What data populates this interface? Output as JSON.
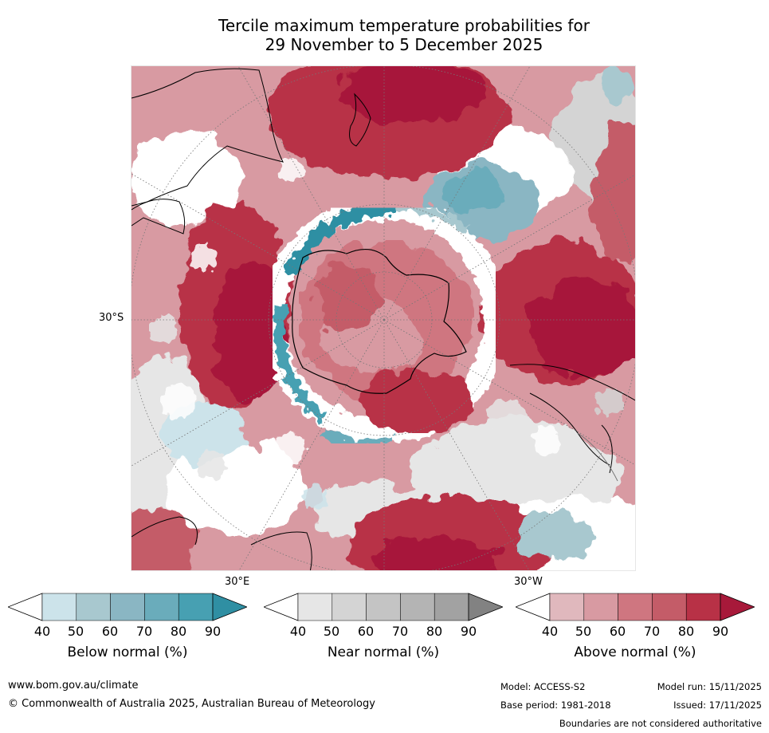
{
  "title": {
    "line1": "Tercile maximum temperature probabilities for",
    "line2": "29 November to 5 December 2025"
  },
  "map": {
    "projection": "polar-stereographic-south",
    "labels": {
      "lat_30s": "30°S",
      "lon_30e": "30°E",
      "lon_30w": "30°W"
    }
  },
  "legend": {
    "ticks": [
      "40",
      "50",
      "60",
      "70",
      "80",
      "90"
    ],
    "below": {
      "title": "Below normal (%)",
      "colors": [
        "#ffffff",
        "#cce3ea",
        "#a8c8cf",
        "#8ab6c3",
        "#6aacbb",
        "#47a0b2",
        "#2f8fa3"
      ]
    },
    "near": {
      "title": "Near normal (%)",
      "colors": [
        "#ffffff",
        "#e6e6e6",
        "#d4d4d4",
        "#c4c4c4",
        "#b4b4b4",
        "#a2a2a2",
        "#828282"
      ]
    },
    "above": {
      "title": "Above normal (%)",
      "colors": [
        "#ffffff",
        "#e0b8bd",
        "#d89aa2",
        "#cf7680",
        "#c45c68",
        "#b83146",
        "#a7193a"
      ]
    }
  },
  "footer": {
    "website": "www.bom.gov.au/climate",
    "copyright": "© Commonwealth of Australia 2025, Australian Bureau of Meteorology",
    "model": "Model: ACCESS-S2",
    "model_run": "Model run: 15/11/2025",
    "base_period": "Base period: 1981-2018",
    "issued": "Issued: 17/11/2025",
    "disclaimer": "Boundaries are not considered authoritative"
  }
}
